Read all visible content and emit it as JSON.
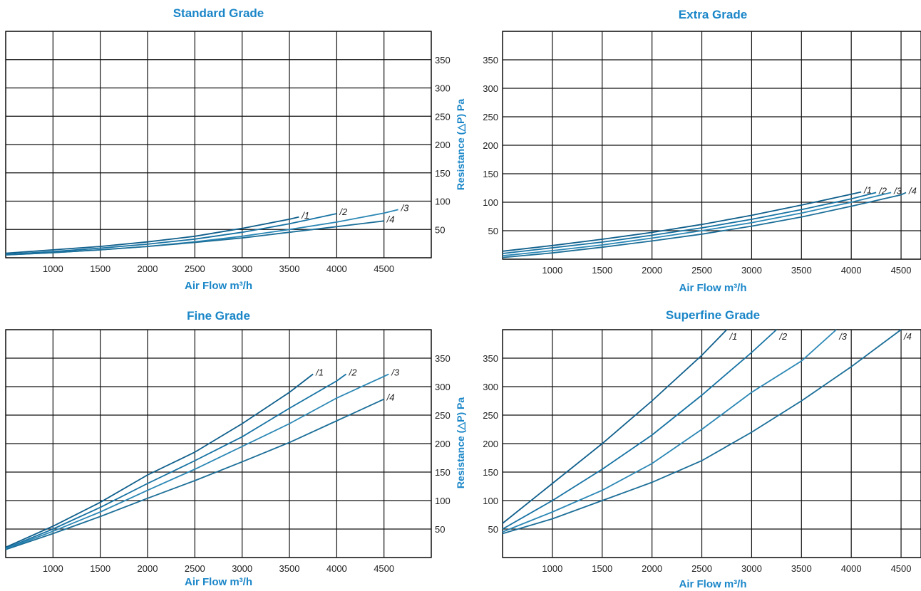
{
  "y_axis_label": "Resistance (△P) Pa",
  "x_axis_label": "Air Flow m³/h",
  "chart_data": [
    {
      "type": "line",
      "title": "Standard Grade",
      "xlabel": "Air Flow m³/h",
      "ylabel": "",
      "xlim": [
        500,
        5000
      ],
      "ylim": [
        0,
        400
      ],
      "xticks": [
        1000,
        1500,
        2000,
        2500,
        3000,
        3500,
        4000,
        4500
      ],
      "yticks": [
        50,
        100,
        150,
        200,
        250,
        300,
        350
      ],
      "y_axis_side": "right",
      "grid": true,
      "series": [
        {
          "name": "/1",
          "x": [
            500,
            1000,
            1500,
            2000,
            2500,
            3000,
            3500,
            3600
          ],
          "y": [
            8,
            14,
            20,
            28,
            38,
            52,
            68,
            72
          ]
        },
        {
          "name": "/2",
          "x": [
            500,
            1000,
            1500,
            2000,
            2500,
            3000,
            3500,
            4000
          ],
          "y": [
            6,
            11,
            17,
            24,
            33,
            45,
            60,
            78
          ]
        },
        {
          "name": "/3",
          "x": [
            500,
            1000,
            1500,
            2000,
            2500,
            3000,
            3500,
            4000,
            4500,
            4650
          ],
          "y": [
            5,
            9,
            14,
            20,
            28,
            38,
            50,
            63,
            79,
            85
          ]
        },
        {
          "name": "/4",
          "x": [
            500,
            1000,
            1500,
            2000,
            2500,
            3000,
            3500,
            4000,
            4500
          ],
          "y": [
            5,
            9,
            14,
            20,
            27,
            35,
            45,
            55,
            65
          ]
        }
      ]
    },
    {
      "type": "line",
      "title": "Extra Grade",
      "xlabel": "Air Flow m³/h",
      "ylabel": "Resistance (△P) Pa",
      "xlim": [
        500,
        4700
      ],
      "ylim": [
        0,
        400
      ],
      "xticks": [
        1000,
        1500,
        2000,
        2500,
        3000,
        3500,
        4000,
        4500
      ],
      "yticks": [
        50,
        100,
        150,
        200,
        250,
        300,
        350
      ],
      "y_axis_side": "left",
      "grid": true,
      "series": [
        {
          "name": "/1",
          "x": [
            500,
            1000,
            1500,
            2000,
            2500,
            3000,
            3500,
            4000,
            4100
          ],
          "y": [
            14,
            24,
            35,
            47,
            61,
            77,
            95,
            114,
            118
          ]
        },
        {
          "name": "/2",
          "x": [
            500,
            1000,
            1500,
            2000,
            2500,
            3000,
            3500,
            4000,
            4250
          ],
          "y": [
            10,
            20,
            30,
            42,
            55,
            70,
            87,
            106,
            117
          ]
        },
        {
          "name": "/3",
          "x": [
            500,
            1000,
            1500,
            2000,
            2500,
            3000,
            3500,
            4000,
            4400
          ],
          "y": [
            6,
            15,
            25,
            37,
            50,
            64,
            81,
            100,
            117
          ]
        },
        {
          "name": "/4",
          "x": [
            500,
            1000,
            1500,
            2000,
            2500,
            3000,
            3500,
            4000,
            4500,
            4550
          ],
          "y": [
            3,
            11,
            21,
            32,
            44,
            58,
            74,
            93,
            113,
            117
          ]
        }
      ]
    },
    {
      "type": "line",
      "title": "Fine Grade",
      "xlabel": "Air Flow m³/h",
      "ylabel": "",
      "xlim": [
        500,
        5000
      ],
      "ylim": [
        0,
        400
      ],
      "xticks": [
        1000,
        1500,
        2000,
        2500,
        3000,
        3500,
        4000,
        4500
      ],
      "yticks": [
        50,
        100,
        150,
        200,
        250,
        300,
        350
      ],
      "y_axis_side": "right",
      "grid": true,
      "series": [
        {
          "name": "/1",
          "x": [
            500,
            1000,
            1500,
            2000,
            2500,
            3000,
            3500,
            3750
          ],
          "y": [
            18,
            55,
            97,
            145,
            185,
            235,
            290,
            322
          ]
        },
        {
          "name": "/2",
          "x": [
            500,
            1000,
            1500,
            2000,
            2500,
            3000,
            3500,
            4000,
            4100
          ],
          "y": [
            16,
            50,
            88,
            130,
            170,
            212,
            262,
            310,
            322
          ]
        },
        {
          "name": "/3",
          "x": [
            500,
            1000,
            1500,
            2000,
            2500,
            3000,
            3500,
            4000,
            4500,
            4550
          ],
          "y": [
            15,
            46,
            80,
            118,
            155,
            195,
            235,
            280,
            318,
            322
          ]
        },
        {
          "name": "/4",
          "x": [
            500,
            1000,
            1500,
            2000,
            2500,
            3000,
            3500,
            4000,
            4500
          ],
          "y": [
            14,
            42,
            72,
            104,
            135,
            168,
            202,
            240,
            278
          ]
        }
      ]
    },
    {
      "type": "line",
      "title": "Superfine Grade",
      "xlabel": "Air Flow m³/h",
      "ylabel": "Resistance (△P) Pa",
      "xlim": [
        500,
        4700
      ],
      "ylim": [
        0,
        400
      ],
      "xticks": [
        1000,
        1500,
        2000,
        2500,
        3000,
        3500,
        4000,
        4500
      ],
      "yticks": [
        50,
        100,
        150,
        200,
        250,
        300,
        350
      ],
      "y_axis_side": "left",
      "grid": true,
      "series": [
        {
          "name": "/1",
          "x": [
            500,
            1000,
            1500,
            2000,
            2500,
            2750
          ],
          "y": [
            60,
            130,
            200,
            275,
            355,
            400
          ]
        },
        {
          "name": "/2",
          "x": [
            500,
            1000,
            1500,
            2000,
            2500,
            3000,
            3250
          ],
          "y": [
            50,
            100,
            155,
            215,
            285,
            360,
            400
          ]
        },
        {
          "name": "/3",
          "x": [
            500,
            1000,
            1500,
            2000,
            2500,
            3000,
            3500,
            3850
          ],
          "y": [
            45,
            80,
            118,
            165,
            225,
            290,
            345,
            400
          ]
        },
        {
          "name": "/4",
          "x": [
            500,
            1000,
            1500,
            2000,
            2500,
            3000,
            3500,
            4000,
            4500
          ],
          "y": [
            42,
            68,
            100,
            132,
            170,
            220,
            275,
            335,
            400
          ]
        }
      ]
    }
  ]
}
